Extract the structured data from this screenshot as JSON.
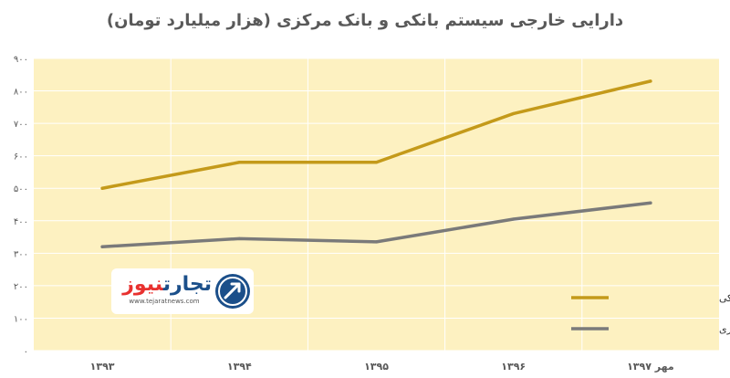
{
  "chart_data": {
    "type": "line",
    "title": "دارایی خارجی سیستم بانکی و بانک مرکزی (هزار میلیارد تومان)",
    "categories": [
      "۱۳۹۳",
      "۱۳۹۴",
      "۱۳۹۵",
      "۱۳۹۶",
      "مهر ۱۳۹۷"
    ],
    "series": [
      {
        "name": "دارایی‌های خارجی سیستم بانکی",
        "values": [
          500,
          580,
          580,
          730,
          830
        ],
        "color": "#c49a1a"
      },
      {
        "name": "دارایی‌های خارجی بانک مرکزی",
        "values": [
          320,
          345,
          335,
          405,
          455
        ],
        "color": "#7a7a7a"
      }
    ],
    "ylim": [
      0,
      900
    ],
    "yticks": [
      "۰",
      "۱۰۰",
      "۲۰۰",
      "۳۰۰",
      "۴۰۰",
      "۵۰۰",
      "۶۰۰",
      "۷۰۰",
      "۸۰۰",
      "۹۰۰"
    ],
    "grid": true,
    "legend_position": "right",
    "plot_background": "#fdf1c1",
    "grid_color": "#ffffff"
  },
  "logo": {
    "part_a": "تجارت",
    "part_b": "نیوز",
    "url": "www.tejaratnews.com",
    "icon": "arrow-badge-icon"
  }
}
